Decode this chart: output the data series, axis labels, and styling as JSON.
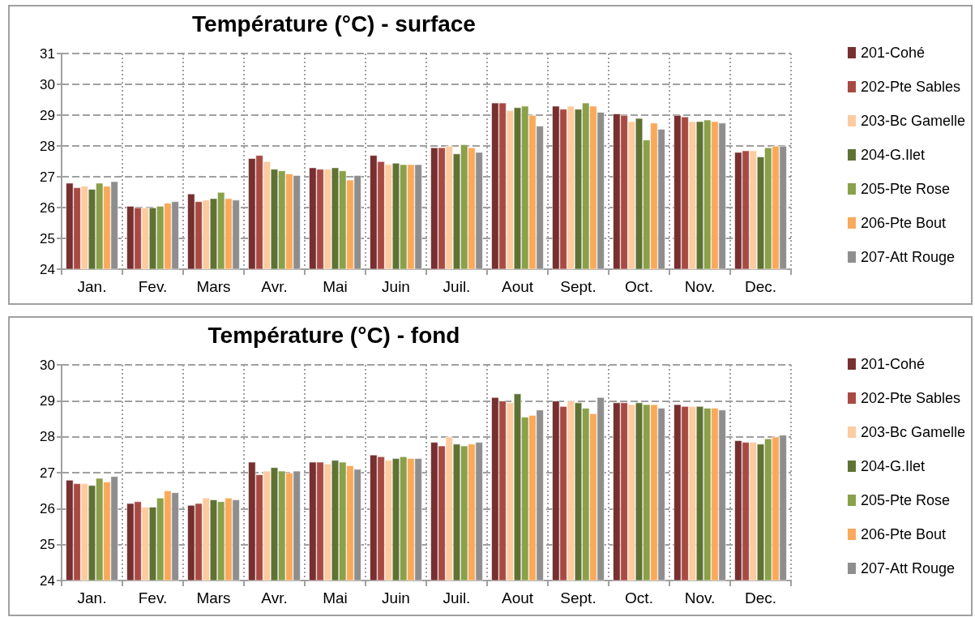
{
  "chart_data": [
    {
      "type": "bar",
      "title": "Température (°C) - surface",
      "categories": [
        "Jan.",
        "Fev.",
        "Mars",
        "Avr.",
        "Mai",
        "Juin",
        "Juil.",
        "Aout",
        "Sept.",
        "Oct.",
        "Nov.",
        "Dec."
      ],
      "ylim": [
        24,
        31
      ],
      "yticks": [
        24,
        25,
        26,
        27,
        28,
        29,
        30,
        31
      ],
      "grid": true,
      "legend": "right",
      "series": [
        {
          "name": "201-Cohé",
          "color": "#772f2f",
          "values": [
            26.8,
            26.05,
            26.45,
            27.6,
            27.3,
            27.7,
            27.95,
            29.4,
            29.3,
            29.05,
            29.0,
            27.8
          ]
        },
        {
          "name": "202-Pte Sables",
          "color": "#a84a44",
          "values": [
            26.65,
            26.0,
            26.2,
            27.7,
            27.25,
            27.5,
            27.95,
            29.4,
            29.2,
            29.0,
            28.95,
            27.85
          ]
        },
        {
          "name": "203-Bc Gamelle",
          "color": "#fccb9f",
          "values": [
            26.7,
            26.0,
            26.25,
            27.5,
            27.25,
            27.4,
            28.0,
            29.15,
            29.3,
            28.8,
            28.8,
            27.85
          ]
        },
        {
          "name": "204-G.Ilet",
          "color": "#5f7234",
          "values": [
            26.6,
            26.0,
            26.3,
            27.25,
            27.3,
            27.45,
            27.75,
            29.25,
            29.2,
            28.9,
            28.8,
            27.65
          ]
        },
        {
          "name": "205-Pte Rose",
          "color": "#8aa04a",
          "values": [
            26.8,
            26.05,
            26.5,
            27.2,
            27.2,
            27.4,
            28.05,
            29.3,
            29.4,
            28.2,
            28.85,
            27.95
          ]
        },
        {
          "name": "206-Pte Bout",
          "color": "#f9a95a",
          "values": [
            26.7,
            26.15,
            26.3,
            27.1,
            26.9,
            27.4,
            27.95,
            29.0,
            29.3,
            28.75,
            28.8,
            28.0
          ]
        },
        {
          "name": "207-Att Rouge",
          "color": "#8e8e8e",
          "values": [
            26.85,
            26.2,
            26.25,
            27.05,
            27.05,
            27.4,
            27.8,
            28.65,
            29.1,
            28.55,
            28.75,
            28.0
          ]
        }
      ]
    },
    {
      "type": "bar",
      "title": "Température (°C) - fond",
      "categories": [
        "Jan.",
        "Fev.",
        "Mars",
        "Avr.",
        "Mai",
        "Juin",
        "Juil.",
        "Aout",
        "Sept.",
        "Oct.",
        "Nov.",
        "Dec."
      ],
      "ylim": [
        24,
        30
      ],
      "yticks": [
        24,
        25,
        26,
        27,
        28,
        29,
        30
      ],
      "grid": true,
      "legend": "right",
      "series": [
        {
          "name": "201-Cohé",
          "color": "#772f2f",
          "values": [
            26.8,
            26.15,
            26.1,
            27.3,
            27.3,
            27.5,
            27.85,
            29.1,
            29.0,
            28.95,
            28.9,
            27.9
          ]
        },
        {
          "name": "202-Pte Sables",
          "color": "#a84a44",
          "values": [
            26.7,
            26.2,
            26.15,
            26.95,
            27.3,
            27.45,
            27.75,
            29.0,
            28.85,
            28.95,
            28.85,
            27.85
          ]
        },
        {
          "name": "203-Bc Gamelle",
          "color": "#fccb9f",
          "values": [
            26.7,
            26.05,
            26.3,
            27.05,
            27.25,
            27.35,
            28.0,
            28.95,
            29.0,
            28.9,
            28.85,
            27.85
          ]
        },
        {
          "name": "204-G.Ilet",
          "color": "#5f7234",
          "values": [
            26.65,
            26.05,
            26.25,
            27.15,
            27.35,
            27.4,
            27.8,
            29.2,
            28.95,
            28.95,
            28.85,
            27.8
          ]
        },
        {
          "name": "205-Pte Rose",
          "color": "#8aa04a",
          "values": [
            26.85,
            26.3,
            26.2,
            27.05,
            27.3,
            27.45,
            27.75,
            28.55,
            28.8,
            28.9,
            28.8,
            27.95
          ]
        },
        {
          "name": "206-Pte Bout",
          "color": "#f9a95a",
          "values": [
            26.75,
            26.5,
            26.3,
            27.0,
            27.2,
            27.4,
            27.8,
            28.6,
            28.65,
            28.9,
            28.8,
            28.0
          ]
        },
        {
          "name": "207-Att Rouge",
          "color": "#8e8e8e",
          "values": [
            26.9,
            26.45,
            26.25,
            27.05,
            27.1,
            27.4,
            27.85,
            28.75,
            29.1,
            28.8,
            28.75,
            28.05
          ]
        }
      ]
    }
  ]
}
